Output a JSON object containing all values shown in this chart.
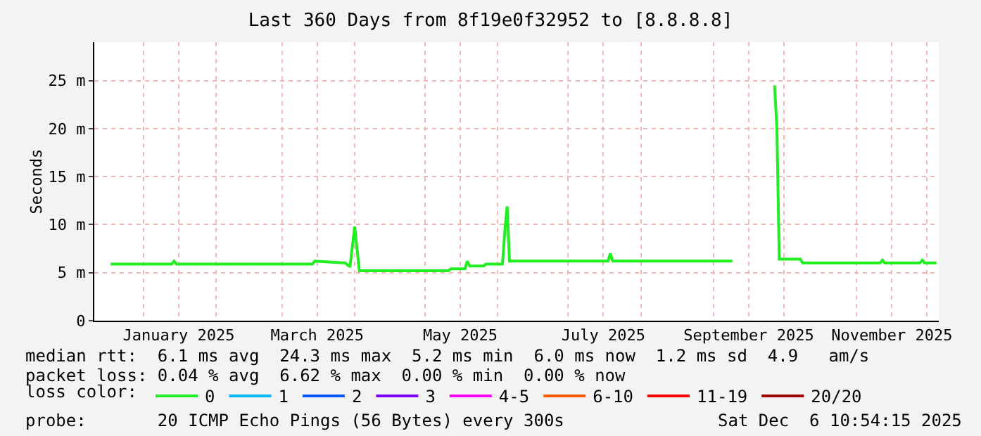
{
  "chart_data": {
    "type": "line",
    "title": "Last 360 Days from 8f19e0f32952 to [8.8.8.8]",
    "ylabel": "Seconds",
    "legend_title": "loss color:",
    "legend": "bottom",
    "grid": true,
    "marker": "none",
    "line_style": "solid",
    "x": [
      "2024-12-18",
      "2025-01-13",
      "2025-01-14",
      "2025-01-15",
      "2025-03-14",
      "2025-03-15",
      "2025-03-28",
      "2025-03-30",
      "2025-04-01",
      "2025-04-02",
      "2025-04-03",
      "2025-05-11",
      "2025-05-12",
      "2025-05-18",
      "2025-05-19",
      "2025-05-20",
      "2025-05-26",
      "2025-05-27",
      "2025-06-03",
      "2025-06-04",
      "2025-06-05",
      "2025-06-06",
      "2025-07-18",
      "2025-07-19",
      "2025-07-20",
      "2025-09-09",
      "2025-09-18",
      "2025-09-27",
      "2025-09-28",
      "2025-09-29",
      "2025-10-08",
      "2025-10-09",
      "2025-11-11",
      "2025-11-12",
      "2025-11-13",
      "2025-11-28",
      "2025-11-29",
      "2025-11-30",
      "2025-12-05"
    ],
    "xlim": [
      "2024-12-11",
      "2025-12-06"
    ],
    "xticks": [
      {
        "value": "2025-01-01",
        "label": null
      },
      {
        "value": "2025-01-16",
        "label": "January 2025"
      },
      {
        "value": "2025-02-01",
        "label": null
      },
      {
        "value": "2025-03-01",
        "label": null
      },
      {
        "value": "2025-03-16",
        "label": "March 2025"
      },
      {
        "value": "2025-04-01",
        "label": null
      },
      {
        "value": "2025-05-01",
        "label": null
      },
      {
        "value": "2025-05-16",
        "label": "May 2025"
      },
      {
        "value": "2025-06-01",
        "label": null
      },
      {
        "value": "2025-07-01",
        "label": null
      },
      {
        "value": "2025-07-16",
        "label": "July 2025"
      },
      {
        "value": "2025-08-01",
        "label": null
      },
      {
        "value": "2025-09-01",
        "label": null
      },
      {
        "value": "2025-09-16",
        "label": "September 2025"
      },
      {
        "value": "2025-10-01",
        "label": null
      },
      {
        "value": "2025-11-01",
        "label": null
      },
      {
        "value": "2025-11-16",
        "label": "November 2025"
      },
      {
        "value": "2025-12-01",
        "label": null
      }
    ],
    "ylim": [
      0,
      29
    ],
    "yticks": [
      0,
      {
        "value": 5,
        "label": "5 m"
      },
      {
        "value": 10,
        "label": "10 m"
      },
      {
        "value": 15,
        "label": "15 m"
      },
      {
        "value": 20,
        "label": "20 m"
      },
      {
        "value": 25,
        "label": "25 m"
      }
    ],
    "series": [
      {
        "name": "0",
        "color": "#20ee20",
        "values": [
          5.9,
          5.9,
          6.2,
          5.9,
          5.9,
          6.2,
          6.0,
          5.6,
          9.8,
          7.5,
          5.2,
          5.2,
          5.4,
          5.4,
          6.2,
          5.7,
          5.7,
          5.9,
          5.9,
          9.3,
          11.9,
          6.2,
          6.2,
          7.0,
          6.2,
          6.2,
          null,
          24.5,
          20.0,
          6.4,
          6.4,
          6.0,
          6.0,
          6.3,
          6.0,
          6.0,
          6.3,
          6.0,
          6.0
        ]
      },
      {
        "name": "1",
        "color": "#00b8ff",
        "values": [
          null,
          null,
          null,
          null,
          null,
          null,
          null,
          null,
          null,
          null,
          null,
          null,
          null,
          null,
          null,
          null,
          null,
          null,
          null,
          null,
          null,
          null,
          null,
          null,
          null,
          null,
          null,
          null,
          null,
          null,
          null,
          null,
          null,
          null,
          null,
          null,
          null,
          null,
          null
        ]
      },
      {
        "name": "2",
        "color": "#0059ff",
        "values": [
          null,
          null,
          null,
          null,
          null,
          null,
          null,
          null,
          null,
          null,
          null,
          null,
          null,
          null,
          null,
          null,
          null,
          null,
          null,
          null,
          null,
          null,
          null,
          null,
          null,
          null,
          null,
          null,
          null,
          null,
          null,
          null,
          null,
          null,
          null,
          null,
          null,
          null,
          null
        ]
      },
      {
        "name": "3",
        "color": "#7e00ff",
        "values": [
          null,
          null,
          null,
          null,
          null,
          null,
          null,
          null,
          null,
          null,
          null,
          null,
          null,
          null,
          null,
          null,
          null,
          null,
          null,
          null,
          null,
          null,
          null,
          null,
          null,
          null,
          null,
          null,
          null,
          null,
          null,
          null,
          null,
          null,
          null,
          null,
          null,
          null,
          null
        ]
      },
      {
        "name": "4-5",
        "color": "#ff00ff",
        "values": [
          null,
          null,
          null,
          null,
          null,
          null,
          null,
          null,
          null,
          null,
          null,
          null,
          null,
          null,
          null,
          null,
          null,
          null,
          null,
          null,
          null,
          null,
          null,
          null,
          null,
          null,
          null,
          null,
          null,
          null,
          null,
          null,
          null,
          null,
          null,
          null,
          null,
          null,
          null
        ]
      },
      {
        "name": "6-10",
        "color": "#ff5900",
        "values": [
          null,
          null,
          null,
          null,
          null,
          null,
          null,
          null,
          null,
          null,
          null,
          null,
          null,
          null,
          null,
          null,
          null,
          null,
          null,
          null,
          null,
          null,
          null,
          null,
          null,
          null,
          null,
          null,
          null,
          null,
          null,
          null,
          null,
          null,
          null,
          null,
          null,
          null,
          null
        ]
      },
      {
        "name": "11-19",
        "color": "#ff0000",
        "values": [
          null,
          null,
          null,
          null,
          null,
          null,
          null,
          null,
          null,
          null,
          null,
          null,
          null,
          null,
          null,
          null,
          null,
          null,
          null,
          null,
          null,
          null,
          null,
          null,
          null,
          null,
          null,
          null,
          null,
          null,
          null,
          null,
          null,
          null,
          null,
          null,
          null,
          null,
          null
        ]
      },
      {
        "name": "20/20",
        "color": "#a10000",
        "values": [
          null,
          null,
          null,
          null,
          null,
          null,
          null,
          null,
          null,
          null,
          null,
          null,
          null,
          null,
          null,
          null,
          null,
          null,
          null,
          null,
          null,
          null,
          null,
          null,
          null,
          null,
          null,
          null,
          null,
          null,
          null,
          null,
          null,
          null,
          null,
          null,
          null,
          null,
          null
        ]
      }
    ],
    "annotations": [
      "median rtt:  6.1 ms avg  24.3 ms max  5.2 ms min  6.0 ms now  1.2 ms sd  4.9   am/s",
      "packet loss: 0.04 % avg  6.62 % max  0.00 % min  0.00 % now",
      "probe:       20 ICMP Echo Pings (56 Bytes) every 300s",
      "Sat Dec  6 10:54:15 2025"
    ]
  }
}
